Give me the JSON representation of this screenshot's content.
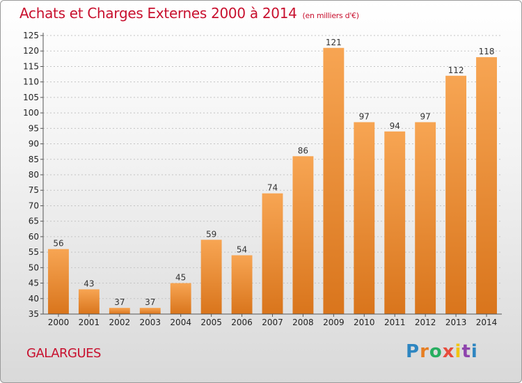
{
  "chart_data": {
    "type": "bar",
    "title": "Achats et Charges Externes 2000 à 2014",
    "unit": "(en milliers d'€)",
    "categories": [
      "2000",
      "2001",
      "2002",
      "2003",
      "2004",
      "2005",
      "2006",
      "2007",
      "2008",
      "2009",
      "2010",
      "2011",
      "2012",
      "2013",
      "2014"
    ],
    "values": [
      56,
      43,
      37,
      37,
      45,
      59,
      54,
      74,
      86,
      121,
      97,
      94,
      97,
      112,
      118
    ],
    "ylim": [
      35,
      125
    ],
    "yticks": [
      35,
      40,
      45,
      50,
      55,
      60,
      65,
      70,
      75,
      80,
      85,
      90,
      95,
      100,
      105,
      110,
      115,
      120,
      125
    ],
    "grid": true,
    "bar_color": "#f0902f"
  },
  "place_name": "GALARGUES",
  "logo": {
    "letters": [
      "P",
      "r",
      "o",
      "x",
      "i",
      "t",
      "i"
    ],
    "colors": [
      "#2e86c1",
      "#e67e22",
      "#27ae60",
      "#e74c3c",
      "#f1c40f",
      "#8e44ad",
      "#2e86c1"
    ]
  }
}
